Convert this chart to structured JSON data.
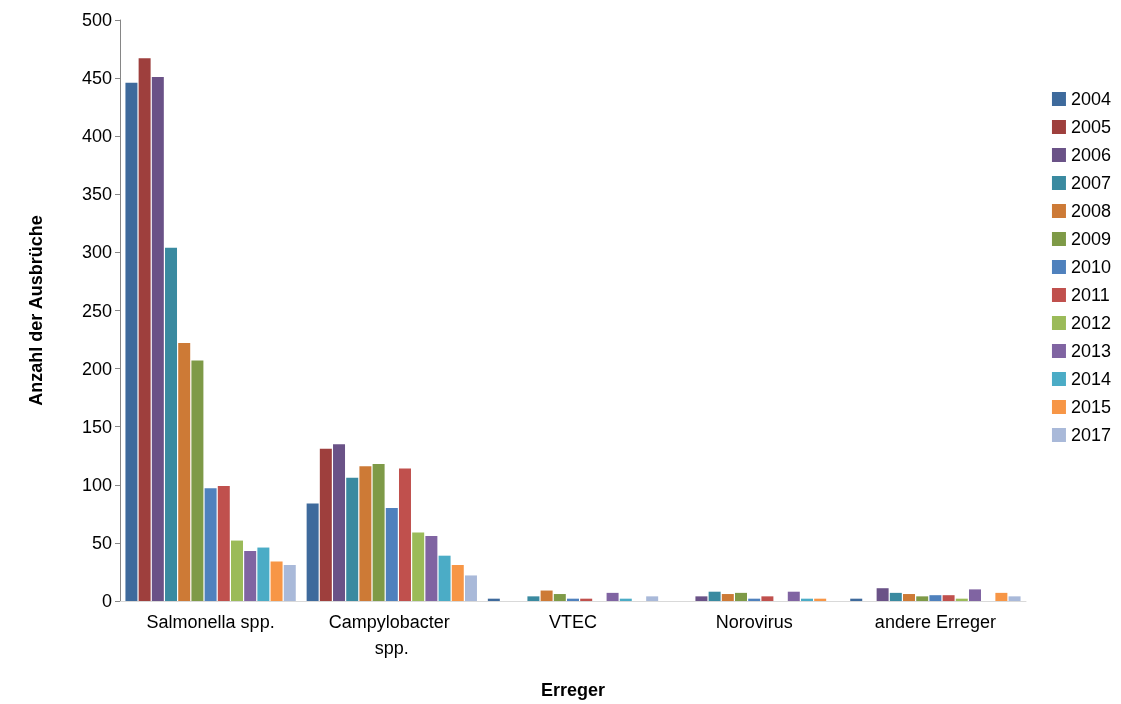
{
  "chart_data": {
    "type": "bar",
    "xlabel": "Erreger",
    "ylabel": "Anzahl der Ausbrüche",
    "categories": [
      "Salmonella spp.",
      "Campylobacter spp.",
      "VTEC",
      "Norovirus",
      "andere Erreger"
    ],
    "ylim": [
      0,
      500
    ],
    "yticks": [
      0,
      50,
      100,
      150,
      200,
      250,
      300,
      350,
      400,
      450,
      500
    ],
    "grid": false,
    "legend": "right",
    "series": [
      {
        "name": "2004",
        "color": "#3e6a9c",
        "values": [
          446,
          84,
          2,
          null,
          2
        ]
      },
      {
        "name": "2005",
        "color": "#9e3f3d",
        "values": [
          467,
          131,
          null,
          null,
          null
        ]
      },
      {
        "name": "2006",
        "color": "#6a5287",
        "values": [
          451,
          135,
          null,
          4,
          11
        ]
      },
      {
        "name": "2007",
        "color": "#3a8aa0",
        "values": [
          304,
          106,
          4,
          8,
          7
        ]
      },
      {
        "name": "2008",
        "color": "#cd7a36",
        "values": [
          222,
          116,
          9,
          6,
          6
        ]
      },
      {
        "name": "2009",
        "color": "#7e9a47",
        "values": [
          207,
          118,
          6,
          7,
          4
        ]
      },
      {
        "name": "2010",
        "color": "#4f81bd",
        "values": [
          97,
          80,
          2,
          2,
          5
        ]
      },
      {
        "name": "2011",
        "color": "#c0504d",
        "values": [
          99,
          114,
          2,
          4,
          5
        ]
      },
      {
        "name": "2012",
        "color": "#9bbb59",
        "values": [
          52,
          59,
          null,
          null,
          2
        ]
      },
      {
        "name": "2013",
        "color": "#8064a2",
        "values": [
          43,
          56,
          7,
          8,
          10
        ]
      },
      {
        "name": "2014",
        "color": "#4bacc6",
        "values": [
          46,
          39,
          2,
          2,
          null
        ]
      },
      {
        "name": "2015",
        "color": "#f79646",
        "values": [
          34,
          31,
          null,
          2,
          7
        ]
      },
      {
        "name": "2017",
        "color": "#a9b9d9",
        "values": [
          31,
          22,
          4,
          null,
          4
        ]
      }
    ]
  }
}
